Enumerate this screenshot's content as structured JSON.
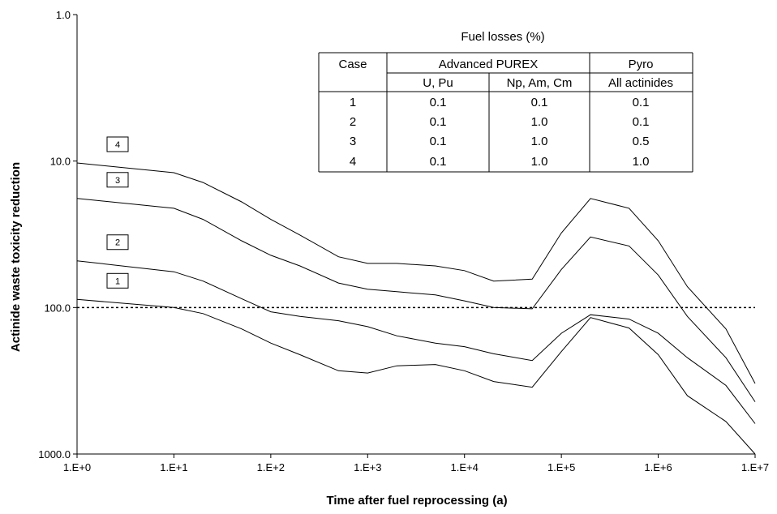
{
  "chart_data": {
    "type": "line",
    "xlabel": "Time after fuel reprocessing (a)",
    "ylabel": "Actinide waste toxicity reduction",
    "x_scale": "log",
    "y_scale": "log",
    "y_inverted": true,
    "xlim": [
      1,
      10000000
    ],
    "ylim": [
      1,
      1000
    ],
    "x_ticks": [
      "1.E+0",
      "1.E+1",
      "1.E+2",
      "1.E+3",
      "1.E+4",
      "1.E+5",
      "1.E+6",
      "1.E+7"
    ],
    "y_ticks": [
      "1.0",
      "10.0",
      "100.0",
      "1000.0"
    ],
    "reference_line": {
      "y": 100,
      "style": "dotted"
    },
    "grid": false,
    "x": [
      1,
      10,
      20,
      50,
      100,
      200,
      500,
      1000,
      2000,
      5000,
      10000,
      20000,
      50000,
      100000,
      200000,
      500000,
      1000000,
      2000000,
      5000000,
      10000000
    ],
    "series": [
      {
        "name": "1",
        "values": [
          88,
          100,
          110,
          140,
          175,
          210,
          270,
          280,
          250,
          245,
          270,
          320,
          350,
          200,
          117,
          138,
          210,
          400,
          600,
          1000
        ]
      },
      {
        "name": "2",
        "values": [
          48,
          57,
          66,
          87,
          107,
          115,
          123,
          135,
          156,
          175,
          185,
          207,
          230,
          150,
          112,
          120,
          150,
          220,
          340,
          620
        ]
      },
      {
        "name": "3",
        "values": [
          18,
          21,
          25,
          35,
          44,
          52,
          68,
          75,
          78,
          82,
          90,
          100,
          102,
          55,
          33,
          38,
          60,
          115,
          220,
          440
        ]
      },
      {
        "name": "4",
        "values": [
          10.3,
          12,
          14,
          19,
          25,
          32,
          45,
          50,
          50,
          52,
          56,
          66,
          64,
          31,
          18,
          21,
          35,
          72,
          140,
          330
        ]
      }
    ],
    "case_labels": [
      "1",
      "2",
      "3",
      "4"
    ]
  },
  "table": {
    "title": "Fuel losses (%)",
    "header_case": "Case",
    "header_group1": "Advanced PUREX",
    "header_group2": "Pyro",
    "sub1": "U, Pu",
    "sub2": "Np, Am, Cm",
    "sub3": "All actinides",
    "rows": [
      [
        "1",
        "0.1",
        "0.1",
        "0.1"
      ],
      [
        "2",
        "0.1",
        "1.0",
        "0.1"
      ],
      [
        "3",
        "0.1",
        "1.0",
        "0.5"
      ],
      [
        "4",
        "0.1",
        "1.0",
        "1.0"
      ]
    ]
  }
}
